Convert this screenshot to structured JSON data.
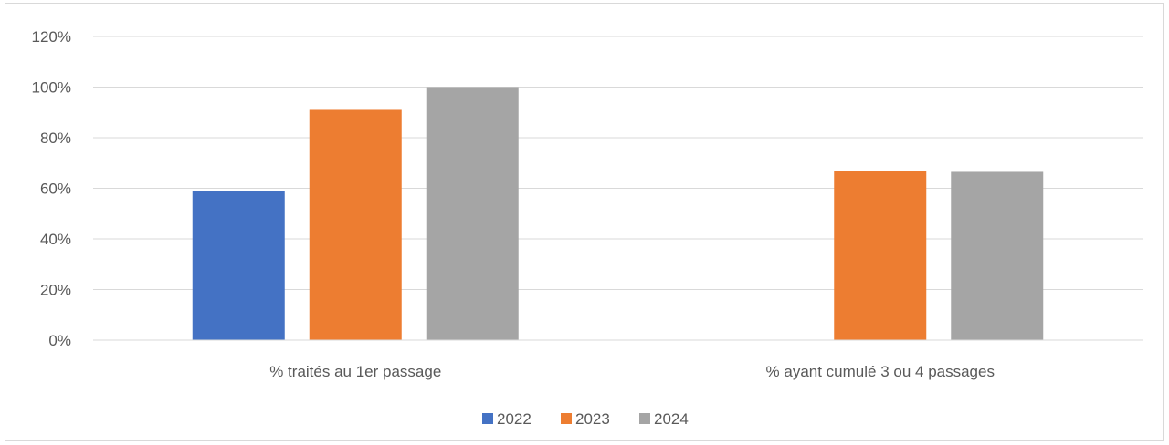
{
  "chart_data": {
    "type": "bar",
    "title": "",
    "xlabel": "",
    "ylabel": "",
    "categories": [
      "% traités au 1er passage",
      "% ayant cumulé 3 ou 4 passages"
    ],
    "series": [
      {
        "name": "2022",
        "color": "#4472c4",
        "values": [
          59,
          null
        ]
      },
      {
        "name": "2023",
        "color": "#ed7d31",
        "values": [
          91,
          67
        ]
      },
      {
        "name": "2024",
        "color": "#a5a5a5",
        "values": [
          100,
          66.5
        ]
      }
    ],
    "ylim": [
      0,
      120
    ],
    "yticks": [
      0,
      20,
      40,
      60,
      80,
      100,
      120
    ],
    "ytick_labels": [
      "0%",
      "20%",
      "40%",
      "60%",
      "80%",
      "100%",
      "120%"
    ],
    "grid": true,
    "legend_position": "bottom"
  }
}
